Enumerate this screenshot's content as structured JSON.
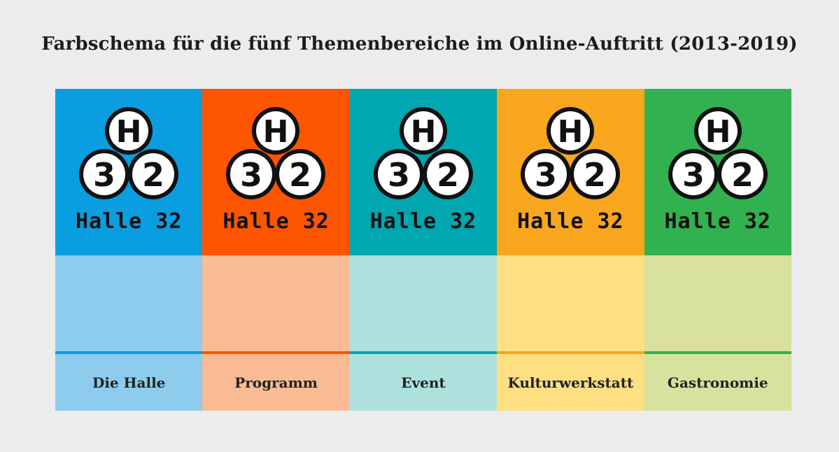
{
  "title": "Farbschema für die fünf Themenbereiche im Online-Auftritt (2013-2019)",
  "logo": {
    "top_letter": "H",
    "left_digit": "3",
    "right_digit": "2",
    "wordmark": "Halle 32"
  },
  "sections": [
    {
      "label": "Die Halle",
      "strong_color": "#0a9ee0",
      "light_color": "#8ecced"
    },
    {
      "label": "Programm",
      "strong_color": "#fd5500",
      "light_color": "#f8bb93"
    },
    {
      "label": "Event",
      "strong_color": "#00a6b0",
      "light_color": "#ade1dd"
    },
    {
      "label": "Kulturwerkstatt",
      "strong_color": "#f8a61e",
      "light_color": "#fedf81"
    },
    {
      "label": "Gastronomie",
      "strong_color": "#32b150",
      "light_color": "#d8e19e"
    }
  ]
}
